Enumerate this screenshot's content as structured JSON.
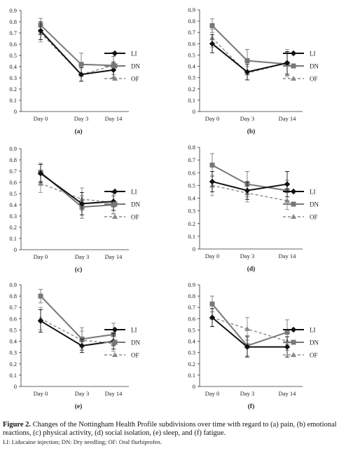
{
  "chart_data": [
    {
      "type": "line",
      "panel_label": "(a)",
      "categories": [
        "Day 0",
        "Day 3",
        "Day 14"
      ],
      "ylim": [
        0,
        0.9
      ],
      "yticks": [
        0,
        0.1,
        0.2,
        0.3,
        0.4,
        0.5,
        0.6,
        0.7,
        0.8,
        0.9
      ],
      "series": [
        {
          "name": "LI",
          "values": [
            0.72,
            0.33,
            0.37
          ],
          "errors": [
            0.08,
            0.06,
            0.07
          ]
        },
        {
          "name": "DN",
          "values": [
            0.77,
            0.42,
            0.41
          ],
          "errors": [
            0.06,
            0.1,
            0.08
          ]
        },
        {
          "name": "OF",
          "values": [
            0.7,
            0.33,
            0.41
          ],
          "errors": [
            0.08,
            0.06,
            0.12
          ]
        }
      ]
    },
    {
      "type": "line",
      "panel_label": "(b)",
      "categories": [
        "Day 0",
        "Day 3",
        "Day 14"
      ],
      "ylim": [
        0,
        0.9
      ],
      "yticks": [
        0,
        0.1,
        0.2,
        0.3,
        0.4,
        0.5,
        0.6,
        0.7,
        0.8,
        0.9
      ],
      "series": [
        {
          "name": "LI",
          "values": [
            0.6,
            0.35,
            0.43
          ],
          "errors": [
            0.08,
            0.07,
            0.1
          ]
        },
        {
          "name": "DN",
          "values": [
            0.76,
            0.45,
            0.42
          ],
          "errors": [
            0.06,
            0.1,
            0.1
          ]
        },
        {
          "name": "OF",
          "values": [
            0.65,
            0.34,
            0.43
          ],
          "errors": [
            0.08,
            0.06,
            0.12
          ]
        }
      ]
    },
    {
      "type": "line",
      "panel_label": "(c)",
      "categories": [
        "Day 0",
        "Day 3",
        "Day 14"
      ],
      "ylim": [
        0,
        0.9
      ],
      "yticks": [
        0,
        0.1,
        0.2,
        0.3,
        0.4,
        0.5,
        0.6,
        0.7,
        0.8,
        0.9
      ],
      "series": [
        {
          "name": "LI",
          "values": [
            0.68,
            0.41,
            0.43
          ],
          "errors": [
            0.08,
            0.1,
            0.08
          ]
        },
        {
          "name": "DN",
          "values": [
            0.69,
            0.38,
            0.4
          ],
          "errors": [
            0.08,
            0.1,
            0.08
          ]
        },
        {
          "name": "OF",
          "values": [
            0.59,
            0.45,
            0.42
          ],
          "errors": [
            0.08,
            0.1,
            0.1
          ]
        }
      ]
    },
    {
      "type": "line",
      "panel_label": "(d)",
      "categories": [
        "Day 0",
        "Day 3",
        "Day 14"
      ],
      "ylim": [
        0,
        0.8
      ],
      "yticks": [
        0,
        0.1,
        0.2,
        0.3,
        0.4,
        0.5,
        0.6,
        0.7,
        0.8
      ],
      "series": [
        {
          "name": "LI",
          "values": [
            0.53,
            0.46,
            0.51
          ],
          "errors": [
            0.08,
            0.07,
            0.1
          ]
        },
        {
          "name": "DN",
          "values": [
            0.66,
            0.51,
            0.46
          ],
          "errors": [
            0.09,
            0.1,
            0.08
          ]
        },
        {
          "name": "OF",
          "values": [
            0.5,
            0.44,
            0.38
          ],
          "errors": [
            0.08,
            0.07,
            0.07
          ]
        }
      ]
    },
    {
      "type": "line",
      "panel_label": "(e)",
      "categories": [
        "Day 0",
        "Day 3",
        "Day 14"
      ],
      "ylim": [
        0,
        0.9
      ],
      "yticks": [
        0,
        0.1,
        0.2,
        0.3,
        0.4,
        0.5,
        0.6,
        0.7,
        0.8,
        0.9
      ],
      "series": [
        {
          "name": "LI",
          "values": [
            0.58,
            0.36,
            0.4
          ],
          "errors": [
            0.1,
            0.06,
            0.07
          ]
        },
        {
          "name": "DN",
          "values": [
            0.8,
            0.42,
            0.46
          ],
          "errors": [
            0.06,
            0.1,
            0.1
          ]
        },
        {
          "name": "OF",
          "values": [
            0.6,
            0.41,
            0.38
          ],
          "errors": [
            0.1,
            0.08,
            0.07
          ]
        }
      ]
    },
    {
      "type": "line",
      "panel_label": "(f)",
      "categories": [
        "Day 0",
        "Day 3",
        "Day 14"
      ],
      "ylim": [
        0,
        0.9
      ],
      "yticks": [
        0,
        0.1,
        0.2,
        0.3,
        0.4,
        0.5,
        0.6,
        0.7,
        0.8,
        0.9
      ],
      "series": [
        {
          "name": "LI",
          "values": [
            0.61,
            0.35,
            0.35
          ],
          "errors": [
            0.08,
            0.09,
            0.09
          ]
        },
        {
          "name": "DN",
          "values": [
            0.73,
            0.36,
            0.48
          ],
          "errors": [
            0.07,
            0.09,
            0.11
          ]
        },
        {
          "name": "OF",
          "values": [
            0.61,
            0.51,
            0.4
          ],
          "errors": [
            0.08,
            0.1,
            0.08
          ]
        }
      ]
    }
  ],
  "series_styles": {
    "LI": {
      "color": "#111111",
      "dash": "",
      "marker": "diamond"
    },
    "DN": {
      "color": "#777777",
      "dash": "",
      "marker": "square"
    },
    "OF": {
      "color": "#8a8a8a",
      "dash": "4,3",
      "marker": "triangle"
    }
  },
  "caption": {
    "title": "Figure 2.",
    "text": " Changes of the Nottingham Health Profile subdivisions over time with regard to (a) pain, (b) emotional reactions, (c) physical activity, (d) social isolation, (e) sleep, and (f) fatigue.",
    "note": "LI: Lidocaine injection; DN: Dry needling; OF: Oral flurbiprofen."
  }
}
